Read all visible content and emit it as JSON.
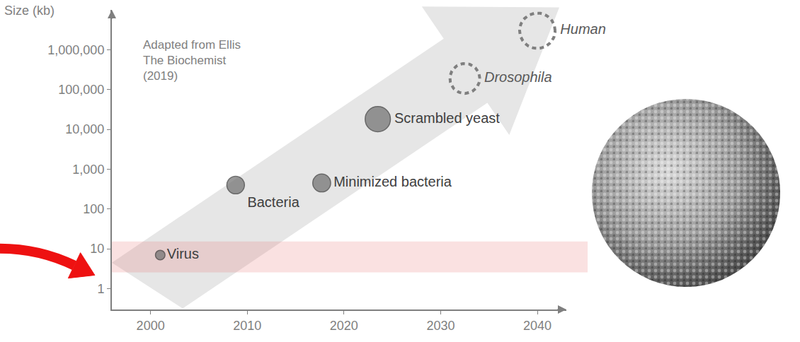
{
  "chart_data": {
    "type": "scatter",
    "y_label": "Size (kb)",
    "note": [
      "Adapted from Ellis",
      "The Biochemist",
      "(2019)"
    ],
    "log": "y",
    "grid": false,
    "xlim": [
      1996,
      2043
    ],
    "xticks": [
      2000,
      2010,
      2020,
      2030,
      2040
    ],
    "ylim": [
      0.3,
      10000000
    ],
    "yticks": [
      1,
      10,
      100,
      {
        "value": 1000,
        "label": "1,000"
      },
      {
        "value": 10000,
        "label": "10,000"
      },
      {
        "value": 100000,
        "label": "100,000"
      },
      {
        "value": 1000000,
        "label": "1,000,000"
      }
    ],
    "series": [
      {
        "marker": "filled",
        "color": "#6e6e6e",
        "x": [
          2001,
          2008.8,
          2017.7,
          2023.5
        ],
        "values": [
          7,
          400,
          450,
          18000
        ],
        "labels": [
          "Virus",
          "Bacteria",
          "Minimized bacteria",
          "Scrambled yeast"
        ]
      },
      {
        "marker": "dashed",
        "color": "#7f7f7f",
        "x": [
          2032.5,
          2040
        ],
        "values": [
          190000,
          3000000
        ],
        "labels": [
          "Drosophila",
          "Human"
        ]
      }
    ]
  }
}
